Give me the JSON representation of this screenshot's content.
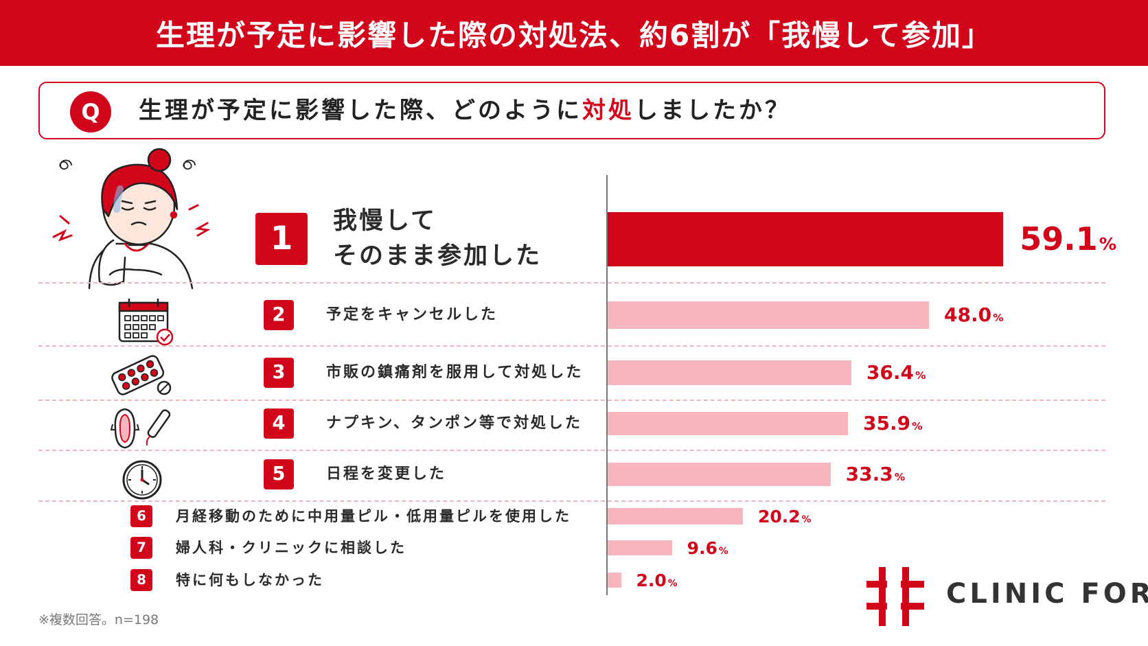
{
  "header": {
    "title": "生理が予定に影響した際の対処法、約6割が「我慢して参加」"
  },
  "question": {
    "badge": "Q",
    "text_before": "生理が予定に影響した際、どのように",
    "text_highlight": "対処",
    "text_after": "しましたか？"
  },
  "chart_data": {
    "type": "bar",
    "orientation": "horizontal",
    "title": "",
    "xlim": [
      0,
      100
    ],
    "categories": [
      "我慢してそのまま参加した",
      "予定をキャンセルした",
      "市販の鎮痛剤を服用して対処した",
      "ナプキン、タンポン等で対処した",
      "日程を変更した",
      "月経移動のために中用量ピル・低用量ピルを使用した",
      "婦人科・クリニックに相談した",
      "特に何もしなかった"
    ],
    "label_lines": [
      [
        "我慢して",
        "そのまま参加した"
      ],
      [
        "予定をキャンセルした"
      ],
      [
        "市販の鎮痛剤を服用して対処した"
      ],
      [
        "ナプキン、タンポン等で対処した"
      ],
      [
        "日程を変更した"
      ],
      [
        "月経移動のために中用量ピル・低用量ピルを使用した"
      ],
      [
        "婦人科・クリニックに相談した"
      ],
      [
        "特に何もしなかった"
      ]
    ],
    "ranks": [
      "1",
      "2",
      "3",
      "4",
      "5",
      "6",
      "7",
      "8"
    ],
    "values": [
      59.1,
      48.0,
      36.4,
      35.9,
      33.3,
      20.2,
      9.6,
      2.0
    ],
    "value_labels": [
      "59.1",
      "48.0",
      "36.4",
      "35.9",
      "33.3",
      "20.2",
      "9.6",
      "2.0"
    ],
    "unit": "%",
    "colors": {
      "top": "#d1061b",
      "others": "#f7b6be",
      "value_text": "#d1061b"
    }
  },
  "icons": [
    "woman-pain-icon",
    "calendar-check-icon",
    "pill-pack-icon",
    "napkin-tampon-icon",
    "clock-icon"
  ],
  "footnote": "※複数回答。n=198",
  "brand": {
    "name": "CLINIC FOR",
    "color": "#d1061b"
  }
}
